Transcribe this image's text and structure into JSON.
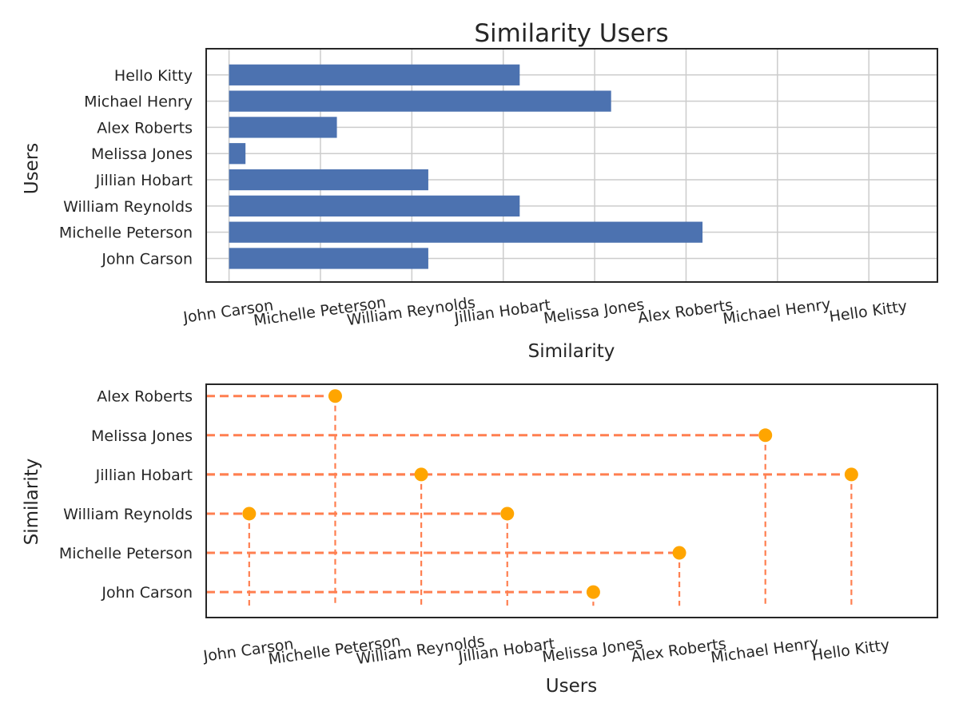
{
  "chart_data": [
    {
      "type": "bar",
      "orientation": "horizontal",
      "title": "Similarity Users",
      "xlabel": "Similarity",
      "ylabel": "Users",
      "categories": [
        "John Carson",
        "Michelle Peterson",
        "William Reynolds",
        "Jillian Hobart",
        "Melissa Jones",
        "Alex Roberts",
        "Michael Henry",
        "Hello Kitty"
      ],
      "values": [
        2.18,
        5.18,
        3.18,
        2.18,
        0.18,
        1.18,
        4.18,
        3.18
      ],
      "x_ticks": [
        "John Carson",
        "Michelle Peterson",
        "William Reynolds",
        "Jillian Hobart",
        "Melissa Jones",
        "Alex Roberts",
        "Michael Henry",
        "Hello Kitty"
      ],
      "xlim": [
        -0.25,
        7.75
      ],
      "ylim": [
        -0.9,
        8.0
      ],
      "grid": true,
      "color": "#4c72b0"
    },
    {
      "type": "scatter",
      "title": "",
      "xlabel": "Users",
      "ylabel": "Similarity",
      "x_ticks": [
        "John Carson",
        "Michelle Peterson",
        "William Reynolds",
        "Jillian Hobart",
        "Melissa Jones",
        "Alex Roberts",
        "Michael Henry",
        "Hello Kitty"
      ],
      "y_ticks": [
        "John Carson",
        "Michelle Peterson",
        "William Reynolds",
        "Jillian Hobart",
        "Melissa Jones",
        "Alex Roberts"
      ],
      "points": [
        {
          "x": "John Carson",
          "y": "William Reynolds"
        },
        {
          "x": "Michelle Peterson",
          "y": "Alex Roberts"
        },
        {
          "x": "William Reynolds",
          "y": "Jillian Hobart"
        },
        {
          "x": "Jillian Hobart",
          "y": "William Reynolds"
        },
        {
          "x": "Melissa Jones",
          "y": "John Carson"
        },
        {
          "x": "Alex Roberts",
          "y": "Michelle Peterson"
        },
        {
          "x": "Michael Henry",
          "y": "Melissa Jones"
        },
        {
          "x": "Hello Kitty",
          "y": "Jillian Hobart"
        }
      ],
      "xlim": [
        -0.5,
        8.0
      ],
      "ylim": [
        -0.65,
        5.3
      ],
      "grid": false,
      "marker_color": "#ffa500",
      "line_color": "#ff7f50"
    }
  ]
}
